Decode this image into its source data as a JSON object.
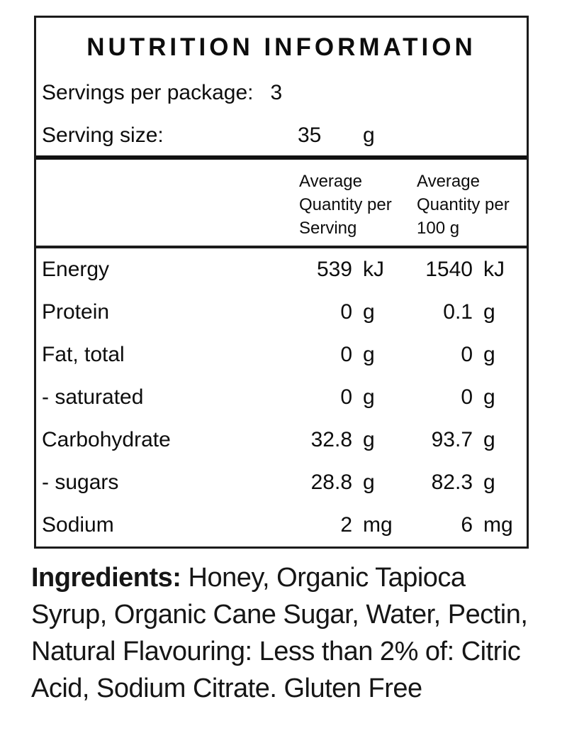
{
  "panel": {
    "title": "NUTRITION INFORMATION",
    "servings": {
      "label": "Servings per package:",
      "value": "3"
    },
    "serving_size": {
      "label": "Serving size:",
      "value": "35",
      "unit": "g"
    },
    "header": {
      "per_serving": "Average\nQuantity per\nServing",
      "per_100g": "Average\nQuantity per\n100 g"
    },
    "rows": [
      {
        "name": "Energy",
        "serving_value": "539",
        "serving_unit": "kJ",
        "per100_value": "1540",
        "per100_unit": "kJ"
      },
      {
        "name": "Protein",
        "serving_value": "0",
        "serving_unit": "g",
        "per100_value": "0.1",
        "per100_unit": "g"
      },
      {
        "name": "Fat, total",
        "serving_value": "0",
        "serving_unit": "g",
        "per100_value": "0",
        "per100_unit": "g"
      },
      {
        "name": "- saturated",
        "serving_value": "0",
        "serving_unit": "g",
        "per100_value": "0",
        "per100_unit": "g"
      },
      {
        "name": "Carbohydrate",
        "serving_value": "32.8",
        "serving_unit": "g",
        "per100_value": "93.7",
        "per100_unit": "g"
      },
      {
        "name": "- sugars",
        "serving_value": "28.8",
        "serving_unit": "g",
        "per100_value": "82.3",
        "per100_unit": "g"
      },
      {
        "name": "Sodium",
        "serving_value": "2",
        "serving_unit": "mg",
        "per100_value": "6",
        "per100_unit": "mg"
      }
    ]
  },
  "ingredients": {
    "label": "Ingredients:",
    "text": " Honey, Organic Tapioca\nSyrup, Organic Cane Sugar, Water, Pectin,\nNatural Flavouring: Less than 2% of: Citric\nAcid, Sodium Citrate. Gluten Free"
  },
  "colors": {
    "text": "#0d0d0d",
    "border": "#1b1b1b",
    "background": "#ffffff"
  }
}
